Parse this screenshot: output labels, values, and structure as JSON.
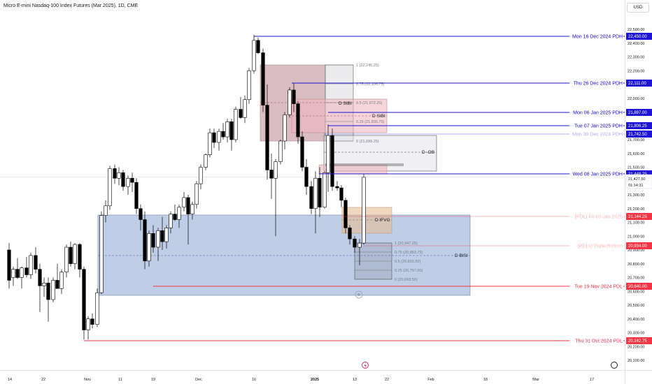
{
  "header": {
    "title": "Micro E-mini Nasdaq-100 Index Futures (Mar 2025), 1D, CME",
    "currency_button": "USD"
  },
  "price_axis": {
    "ticks": [
      "22,500.00",
      "22,400.00",
      "22,300.00",
      "22,200.00",
      "22,100.00",
      "22,000.00",
      "21,900.00",
      "21,800.00",
      "21,700.00",
      "21,600.00",
      "21,500.00",
      "21,400.00",
      "21,300.00",
      "21,200.00",
      "21,100.00",
      "21,000.00",
      "20,900.00",
      "20,800.00",
      "20,700.00",
      "20,600.00",
      "20,500.00",
      "20,400.00",
      "20,300.00",
      "20,200.00",
      "20,100.00"
    ]
  },
  "time_axis": {
    "ticks": [
      "14",
      "22",
      "Nov",
      "11",
      "19",
      "Dec",
      "16",
      "2025",
      "13",
      "22",
      "Feb",
      "18",
      "Mar",
      "17"
    ]
  },
  "levels": [
    {
      "label": "Mon 16 Dec 2024 PDH",
      "price_tag": "22,450.00",
      "color": "#1f13d6"
    },
    {
      "label": "Thu 26 Dec 2024 PDH",
      "price_tag": "22,111.00",
      "color": "#1f13d6"
    },
    {
      "label": "Mon 06 Jan 2025 PDH",
      "price_tag": "21,897.00",
      "color": "#1f13d6"
    },
    {
      "label": "Tue 07 Jan 2025 PDH",
      "price_tag": "21,806.25",
      "color": "#1f13d6"
    },
    {
      "label": "Mon 30 Dec 2024 PDH",
      "price_tag": "21,742.50",
      "color": "#1f13d6"
    },
    {
      "label": "Wed 08 Jan 2025 PDH",
      "price_tag": "21,448.25",
      "color": "#1f13d6"
    },
    {
      "label": "[PDL] Fri 03 Jan 2025",
      "price_tag": "21,144.25",
      "color": "#f23645"
    },
    {
      "label": "[PDLs] Triple Bottom",
      "price_tag": "20,934.00",
      "color": "#f23645"
    },
    {
      "label": "Tue 19 Nov 2024 PDL",
      "price_tag": "20,640.00",
      "color": "#f23645"
    },
    {
      "label": "Thu 31 Oct 2024 PDL",
      "price_tag": "20,242.75",
      "color": "#f23645"
    }
  ],
  "current_price": {
    "value": "21,427.50",
    "countdown": "01:14:31"
  },
  "fib_upper": [
    "1 (22,245.25)",
    "0.75 (22,108.75)",
    "0.5 (21,972.25)",
    "0.25 (21,835.75)",
    "0 (21,699.25)"
  ],
  "fib_lower": [
    "1 (20,947.25)",
    "0.75 (20,883.75)",
    "0.5 (20,820.50)",
    "0.25 (20,757.00)",
    "0 (20,693.50)"
  ],
  "zones": {
    "sibi_1": "D SIBI",
    "sibi_2": "D SIBI",
    "ob": "D -OB",
    "ifvg": "D IFVG",
    "bisi": "D BISI"
  },
  "colors": {
    "up": "#ffffff",
    "down": "#000000",
    "pdh": "#1f13d6",
    "pdl": "#f23645"
  }
}
